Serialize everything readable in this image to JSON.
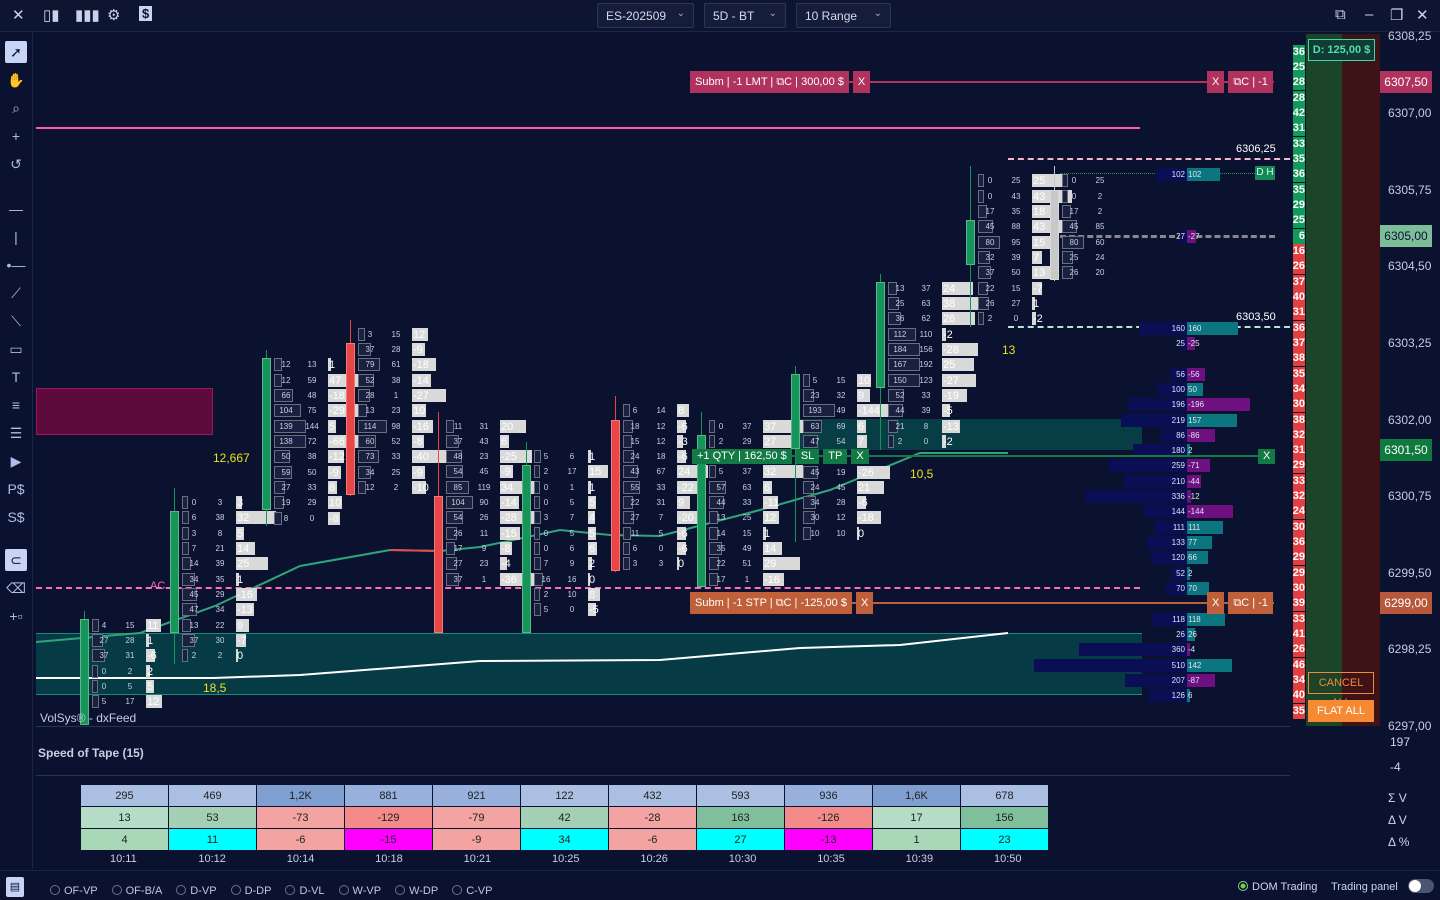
{
  "toolbar": {
    "icons": [
      "close-icon",
      "candlestick-icon",
      "bar-chart-icon",
      "gear-icon",
      "dollar-icon"
    ],
    "symbol": "ES-202509",
    "period": "5D - BT",
    "range": "10 Range"
  },
  "left_tools": [
    "pointer-icon",
    "hand-icon",
    "zoom-icon",
    "crosshair-icon",
    "magnet-cross-icon",
    "horizontal-line-icon",
    "vertical-line-icon",
    "ray-icon",
    "trend-line-icon",
    "channel-icon",
    "rectangle-icon",
    "text-icon",
    "lines-icon",
    "fib-icon",
    "arrow-icon",
    "buy-order-icon",
    "sell-order-icon",
    "magnet-icon",
    "eraser-icon",
    "add-panel-icon"
  ],
  "price_axis": {
    "labels": [
      "6308,25",
      "6307,00",
      "6305,75",
      "6304,50",
      "6303,25",
      "6302,00",
      "6300,75",
      "6299,50",
      "6298,25",
      "6297,00"
    ],
    "badges": [
      {
        "text": "6307,50",
        "color": "#b0335e"
      },
      {
        "text": "6305,00",
        "color": "#7dbe9a"
      },
      {
        "text": "6301,50",
        "color": "#0f7a3e"
      },
      {
        "text": "6299,00",
        "color": "#b8583a"
      }
    ]
  },
  "pnl_badge": "D: 125,00 $",
  "buttons": {
    "cancel_all": "CANCEL ALL",
    "flat_all": "FLAT ALL"
  },
  "orders": {
    "limit": {
      "label": "Subm | -1 LMT | ⧉C | 300,00 $",
      "x": "X",
      "right_x": "X",
      "right": "⧉C | -1",
      "color": "#b0335e"
    },
    "stop": {
      "label": "Subm | -1 STP | ⧉C | -125,00 $",
      "x": "X",
      "right_x": "X",
      "right": "⧉C | -1",
      "color": "#c0603a"
    },
    "position": {
      "label": "+1 QTY | 162,50 $",
      "sl": "SL",
      "tp": "TP",
      "x": "X",
      "right_x": "X",
      "color": "#127a45"
    }
  },
  "annotations": {
    "a1": "12,667",
    "a2": "18,5",
    "a3": "10,5",
    "a4": "13",
    "ac": "AC",
    "dh": "D H",
    "feed": "VolSys® - dxFeed",
    "poc1": "6306,25",
    "poc2": "6303,50"
  },
  "candles": [
    {
      "dir": "up",
      "top": 6298.75,
      "open": 6297.25,
      "close": 6298.75,
      "rows": [
        [
          4,
          15,
          11
        ],
        [
          27,
          28,
          1
        ],
        [
          37,
          31,
          -6
        ],
        [
          0,
          2,
          2
        ],
        [
          0,
          5,
          5
        ],
        [
          5,
          17,
          12
        ]
      ]
    },
    {
      "dir": "up",
      "top": 6300.75,
      "open": 6298.75,
      "close": 6300.5,
      "rows": [
        [
          0,
          3,
          3
        ],
        [
          6,
          38,
          32
        ],
        [
          3,
          8,
          5
        ],
        [
          7,
          21,
          14
        ],
        [
          14,
          39,
          25
        ],
        [
          34,
          35,
          1
        ],
        [
          45,
          29,
          -16
        ],
        [
          47,
          34,
          -13
        ],
        [
          13,
          22,
          9
        ],
        [
          37,
          30,
          -7
        ],
        [
          2,
          2,
          0
        ]
      ]
    },
    {
      "dir": "up",
      "top": 6303.0,
      "open": 6300.75,
      "close": 6303.0,
      "rows": [
        [
          12,
          13,
          1
        ],
        [
          12,
          59,
          47
        ],
        [
          66,
          48,
          -18
        ],
        [
          104,
          75,
          -29
        ],
        [
          139,
          144,
          5
        ],
        [
          138,
          72,
          -66
        ],
        [
          50,
          38,
          -12
        ],
        [
          59,
          50,
          -9
        ],
        [
          27,
          33,
          6
        ],
        [
          19,
          29,
          10
        ],
        [
          8,
          0,
          -8
        ]
      ]
    },
    {
      "dir": "down",
      "top": 6303.5,
      "open": 6303.25,
      "close": 6301.0,
      "rows": [
        [
          3,
          15,
          12
        ],
        [
          37,
          28,
          -9
        ],
        [
          79,
          61,
          -18
        ],
        [
          52,
          38,
          -14
        ],
        [
          28,
          1,
          -27
        ],
        [
          13,
          23,
          10
        ],
        [
          114,
          98,
          -16
        ],
        [
          60,
          52,
          -8
        ],
        [
          73,
          33,
          -40
        ],
        [
          34,
          25,
          -9
        ],
        [
          12,
          2,
          -10
        ]
      ]
    },
    {
      "dir": "down",
      "top": 6302.0,
      "open": 6300.75,
      "close": 6298.75,
      "rows": [
        [
          11,
          31,
          20
        ],
        [
          37,
          43,
          6
        ],
        [
          48,
          23,
          -25
        ],
        [
          54,
          45,
          -9
        ],
        [
          85,
          119,
          34
        ],
        [
          104,
          90,
          -14
        ],
        [
          54,
          26,
          -28
        ],
        [
          26,
          11,
          -15
        ],
        [
          17,
          9,
          -8
        ],
        [
          27,
          23,
          -4
        ],
        [
          37,
          1,
          -36
        ]
      ]
    },
    {
      "dir": "up",
      "top": 6301.5,
      "open": 6298.75,
      "close": 6301.25,
      "rows": [
        [
          5,
          6,
          1
        ],
        [
          2,
          17,
          15
        ],
        [
          0,
          1,
          1
        ],
        [
          0,
          5,
          5
        ],
        [
          3,
          7,
          4
        ],
        [
          0,
          5,
          5
        ],
        [
          0,
          6,
          6
        ],
        [
          7,
          9,
          2
        ],
        [
          16,
          16,
          0
        ],
        [
          2,
          10,
          8
        ],
        [
          5,
          0,
          -5
        ]
      ]
    },
    {
      "dir": "down",
      "top": 6302.25,
      "open": 6302.0,
      "close": 6299.75,
      "rows": [
        [
          6,
          14,
          8
        ],
        [
          18,
          12,
          -6
        ],
        [
          15,
          12,
          -3
        ],
        [
          24,
          18,
          -6
        ],
        [
          43,
          67,
          24
        ],
        [
          55,
          33,
          -22
        ],
        [
          22,
          31,
          9
        ],
        [
          27,
          7,
          -20
        ],
        [
          11,
          5,
          -6
        ],
        [
          6,
          0,
          -6
        ],
        [
          3,
          3,
          0
        ]
      ]
    },
    {
      "dir": "up",
      "top": 6302.0,
      "open": 6299.5,
      "close": 6301.75,
      "rows": [
        [
          0,
          37,
          37
        ],
        [
          2,
          29,
          27
        ],
        [
          "",
          "",
          ""
        ],
        [
          5,
          37,
          32
        ],
        [
          57,
          63,
          6
        ],
        [
          44,
          33,
          -11
        ],
        [
          13,
          25,
          12
        ],
        [
          14,
          15,
          1
        ],
        [
          35,
          49,
          14
        ],
        [
          22,
          51,
          29
        ],
        [
          17,
          1,
          -16
        ]
      ]
    },
    {
      "dir": "up",
      "top": 6302.75,
      "open": 6301.75,
      "close": 6302.75,
      "rows": [
        [
          5,
          15,
          10
        ],
        [
          23,
          32,
          9
        ],
        [
          193,
          49,
          -144
        ],
        [
          63,
          69,
          6
        ],
        [
          47,
          54,
          7
        ],
        [
          "",
          "",
          ""
        ],
        [
          45,
          19,
          -26
        ],
        [
          24,
          45,
          21
        ],
        [
          34,
          28,
          -6
        ],
        [
          30,
          12,
          -18
        ],
        [
          10,
          10,
          0
        ]
      ]
    },
    {
      "dir": "up",
      "top": 6304.25,
      "open": 6302.75,
      "close": 6304.25,
      "rows": [
        [
          13,
          37,
          24
        ],
        [
          25,
          63,
          38
        ],
        [
          36,
          62,
          26
        ],
        [
          112,
          110,
          -2
        ],
        [
          184,
          156,
          -28
        ],
        [
          167,
          192,
          25
        ],
        [
          150,
          123,
          -27
        ],
        [
          52,
          33,
          -19
        ],
        [
          44,
          39,
          -5
        ],
        [
          21,
          8,
          -13
        ],
        [
          2,
          0,
          -2
        ]
      ]
    },
    {
      "dir": "up",
      "top": 6306.0,
      "open": 6304.75,
      "close": 6305.25,
      "rows": [
        [
          0,
          25,
          25
        ],
        [
          0,
          43,
          43
        ],
        [
          17,
          35,
          18
        ],
        [
          45,
          88,
          43
        ],
        [
          80,
          95,
          15
        ],
        [
          32,
          39,
          7
        ],
        [
          37,
          50,
          13
        ],
        [
          22,
          15,
          -7
        ],
        [
          26,
          27,
          1
        ],
        [
          2,
          0,
          -2
        ]
      ]
    },
    {
      "dir": "current",
      "top": 6306.0,
      "open": 6305.75,
      "close": 6304.5,
      "rows": [
        [
          0,
          25,
          ""
        ],
        [
          0,
          2,
          ""
        ],
        [
          17,
          2,
          ""
        ],
        [
          45,
          85,
          ""
        ],
        [
          80,
          60,
          ""
        ],
        [
          25,
          24,
          ""
        ],
        [
          26,
          20,
          ""
        ]
      ]
    }
  ],
  "volume_profile": [
    {
      "p": 6306.0,
      "v": 102,
      "d": 102
    },
    {
      "p": 6305.0,
      "v": 27,
      "d": -27
    },
    {
      "p": 6303.5,
      "v": 160,
      "d": 160
    },
    {
      "p": 6303.25,
      "v": 25,
      "d": -25
    },
    {
      "p": 6302.75,
      "v": 56,
      "d": -56
    },
    {
      "p": 6302.5,
      "v": 100,
      "d": 50
    },
    {
      "p": 6302.25,
      "v": 196,
      "d": -196
    },
    {
      "p": 6302.0,
      "v": 219,
      "d": 157
    },
    {
      "p": 6301.75,
      "v": 86,
      "d": -86
    },
    {
      "p": 6301.5,
      "v": 180,
      "d": 2
    },
    {
      "p": 6301.25,
      "v": 259,
      "d": -71
    },
    {
      "p": 6301.0,
      "v": 210,
      "d": -44
    },
    {
      "p": 6300.75,
      "v": 336,
      "d": -12
    },
    {
      "p": 6300.5,
      "v": 144,
      "d": -144
    },
    {
      "p": 6300.25,
      "v": 111,
      "d": 111
    },
    {
      "p": 6300.0,
      "v": 133,
      "d": 77
    },
    {
      "p": 6299.75,
      "v": 120,
      "d": 66
    },
    {
      "p": 6299.5,
      "v": 52,
      "d": 2
    },
    {
      "p": 6299.25,
      "v": 70,
      "d": 70
    },
    {
      "p": 6298.75,
      "v": 118,
      "d": 118
    },
    {
      "p": 6298.5,
      "v": 26,
      "d": 26
    },
    {
      "p": 6298.25,
      "v": 360,
      "d": -4
    },
    {
      "p": 6298.0,
      "v": 510,
      "d": 142
    },
    {
      "p": 6297.75,
      "v": 207,
      "d": -87
    },
    {
      "p": 6297.5,
      "v": 126,
      "d": 6
    }
  ],
  "dom": {
    "top_price": 6308.0,
    "asks": [
      36,
      25,
      28,
      28,
      42,
      31,
      33,
      35,
      36,
      35,
      29,
      25,
      6
    ],
    "bids": [
      16,
      26,
      37,
      40,
      31,
      36,
      37,
      38,
      35,
      34,
      30,
      38,
      32,
      31,
      29,
      33,
      32,
      24,
      30,
      36,
      29,
      29,
      30,
      39,
      33,
      41,
      26,
      46,
      34,
      40,
      35
    ]
  },
  "speed_of_tape": {
    "title": "Speed of Tape (15)",
    "axis_values": [
      "197",
      "-4"
    ],
    "row_labels": [
      "Σ V",
      "Δ V",
      "Δ %"
    ],
    "times": [
      "10:11",
      "10:12",
      "10:14",
      "10:18",
      "10:21",
      "10:25",
      "10:26",
      "10:30",
      "10:35",
      "10:39",
      "10:50"
    ],
    "volume": [
      "295",
      "469",
      "1,2K",
      "881",
      "921",
      "122",
      "432",
      "593",
      "936",
      "1,6K",
      "678"
    ],
    "delta": [
      "13",
      "53",
      "-73",
      "-129",
      "-79",
      "42",
      "-28",
      "163",
      "-126",
      "17",
      "156"
    ],
    "delta_pct": [
      "4",
      "11",
      "-6",
      "-15",
      "-9",
      "34",
      "-6",
      "27",
      "-13",
      "1",
      "23"
    ]
  },
  "bottom": {
    "options": [
      "OF-VP",
      "OF-B/A",
      "D-VP",
      "D-DP",
      "D-VL",
      "W-VP",
      "W-DP",
      "C-VP"
    ],
    "dom_trading": "DOM Trading",
    "trading_panel": "Trading panel"
  }
}
